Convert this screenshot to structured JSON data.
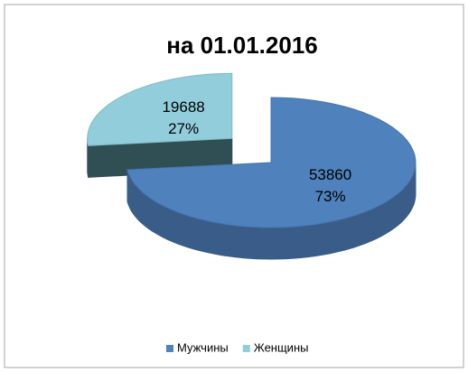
{
  "chart_data": {
    "type": "pie3d",
    "title": "на 01.01.2016",
    "categories": [
      "Мужчины",
      "Женщины"
    ],
    "values": [
      53860,
      19688
    ],
    "percent_values": [
      73,
      27
    ],
    "percent_labels": [
      "73%",
      "27%"
    ],
    "colors": [
      "#4f81bd",
      "#92cddc"
    ],
    "legend": "bottom"
  }
}
